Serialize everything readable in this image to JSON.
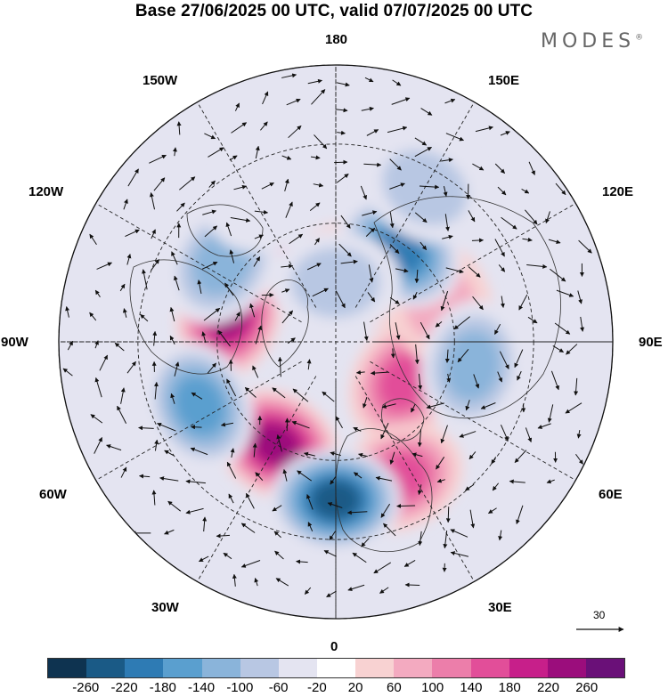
{
  "header": {
    "title": "Base 27/06/2025 00 UTC, valid 07/07/2025 00 UTC",
    "brand": "MODES",
    "brand_mark": "®"
  },
  "map": {
    "projection": "north polar stereographic",
    "longitude_labels": {
      "top": "180",
      "top_left": "150W",
      "top_right": "150E",
      "upper_left": "120W",
      "upper_right": "120E",
      "left": "90W",
      "right": "90E",
      "lower_left": "60W",
      "lower_right": "60E",
      "bottom_left": "30W",
      "bottom_right": "30E",
      "bottom": "0"
    },
    "anomaly_centers": [
      {
        "lon": -30,
        "lat": 60,
        "value": 240
      },
      {
        "lon": -105,
        "lat": 62,
        "value": 220
      },
      {
        "lon": 160,
        "lat": 72,
        "value": 120
      },
      {
        "lon": -140,
        "lat": 58,
        "value": 60
      },
      {
        "lon": 60,
        "lat": 70,
        "value": 140
      },
      {
        "lon": 25,
        "lat": 52,
        "value": 150
      },
      {
        "lon": 110,
        "lat": 62,
        "value": 80
      },
      {
        "lon": 0,
        "lat": 50,
        "value": -240
      },
      {
        "lon": -65,
        "lat": 52,
        "value": -170
      },
      {
        "lon": 145,
        "lat": 62,
        "value": -180
      },
      {
        "lon": 80,
        "lat": 55,
        "value": -130
      },
      {
        "lon": 150,
        "lat": 45,
        "value": -90
      },
      {
        "lon": -125,
        "lat": 55,
        "value": -110
      },
      {
        "lon": 180,
        "lat": 75,
        "value": -60
      },
      {
        "lon": -155,
        "lat": 50,
        "value": -50
      }
    ]
  },
  "reference_vector": {
    "label": "30"
  },
  "colorbar": {
    "colors": [
      "#0e3350",
      "#1a5a86",
      "#2e7bb4",
      "#5a9fcf",
      "#8ab4da",
      "#b8c7e3",
      "#e4e4f1",
      "#ffffff",
      "#f8d2d2",
      "#f3aac0",
      "#ec7eaa",
      "#e24e99",
      "#c71f8a",
      "#9b0d7c",
      "#6a1078"
    ],
    "tick_labels": [
      "-260",
      "-220",
      "-180",
      "-140",
      "-100",
      "-60",
      "-20",
      "20",
      "60",
      "100",
      "140",
      "180",
      "220",
      "260"
    ]
  }
}
